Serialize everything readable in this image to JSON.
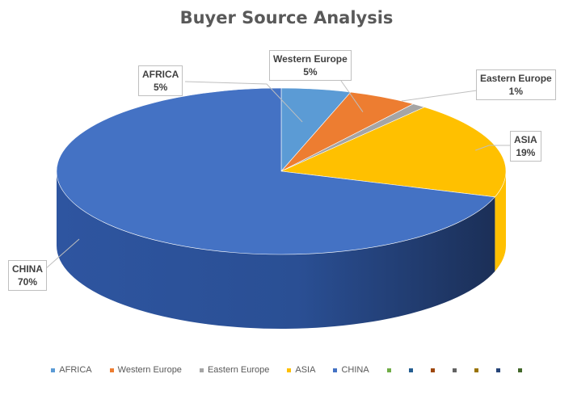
{
  "chart_data": {
    "type": "pie",
    "title": "Buyer Source Analysis",
    "slices": [
      {
        "label": "AFRICA",
        "value": 5,
        "display": "5%",
        "color": "#5b9bd5"
      },
      {
        "label": "Western Europe",
        "value": 5,
        "display": "5%",
        "color": "#ed7d31"
      },
      {
        "label": "Eastern Europe",
        "value": 1,
        "display": "1%",
        "color": "#a5a5a5"
      },
      {
        "label": "ASIA",
        "value": 19,
        "display": "19%",
        "color": "#ffc000"
      },
      {
        "label": "CHINA",
        "value": 70,
        "display": "70%",
        "color": "#4472c4"
      }
    ],
    "legend": {
      "position": "bottom",
      "extra_markers": [
        "#70ad47",
        "#255e91",
        "#9e480e",
        "#636363",
        "#997300",
        "#264478",
        "#43682b"
      ]
    },
    "style": "3d"
  }
}
